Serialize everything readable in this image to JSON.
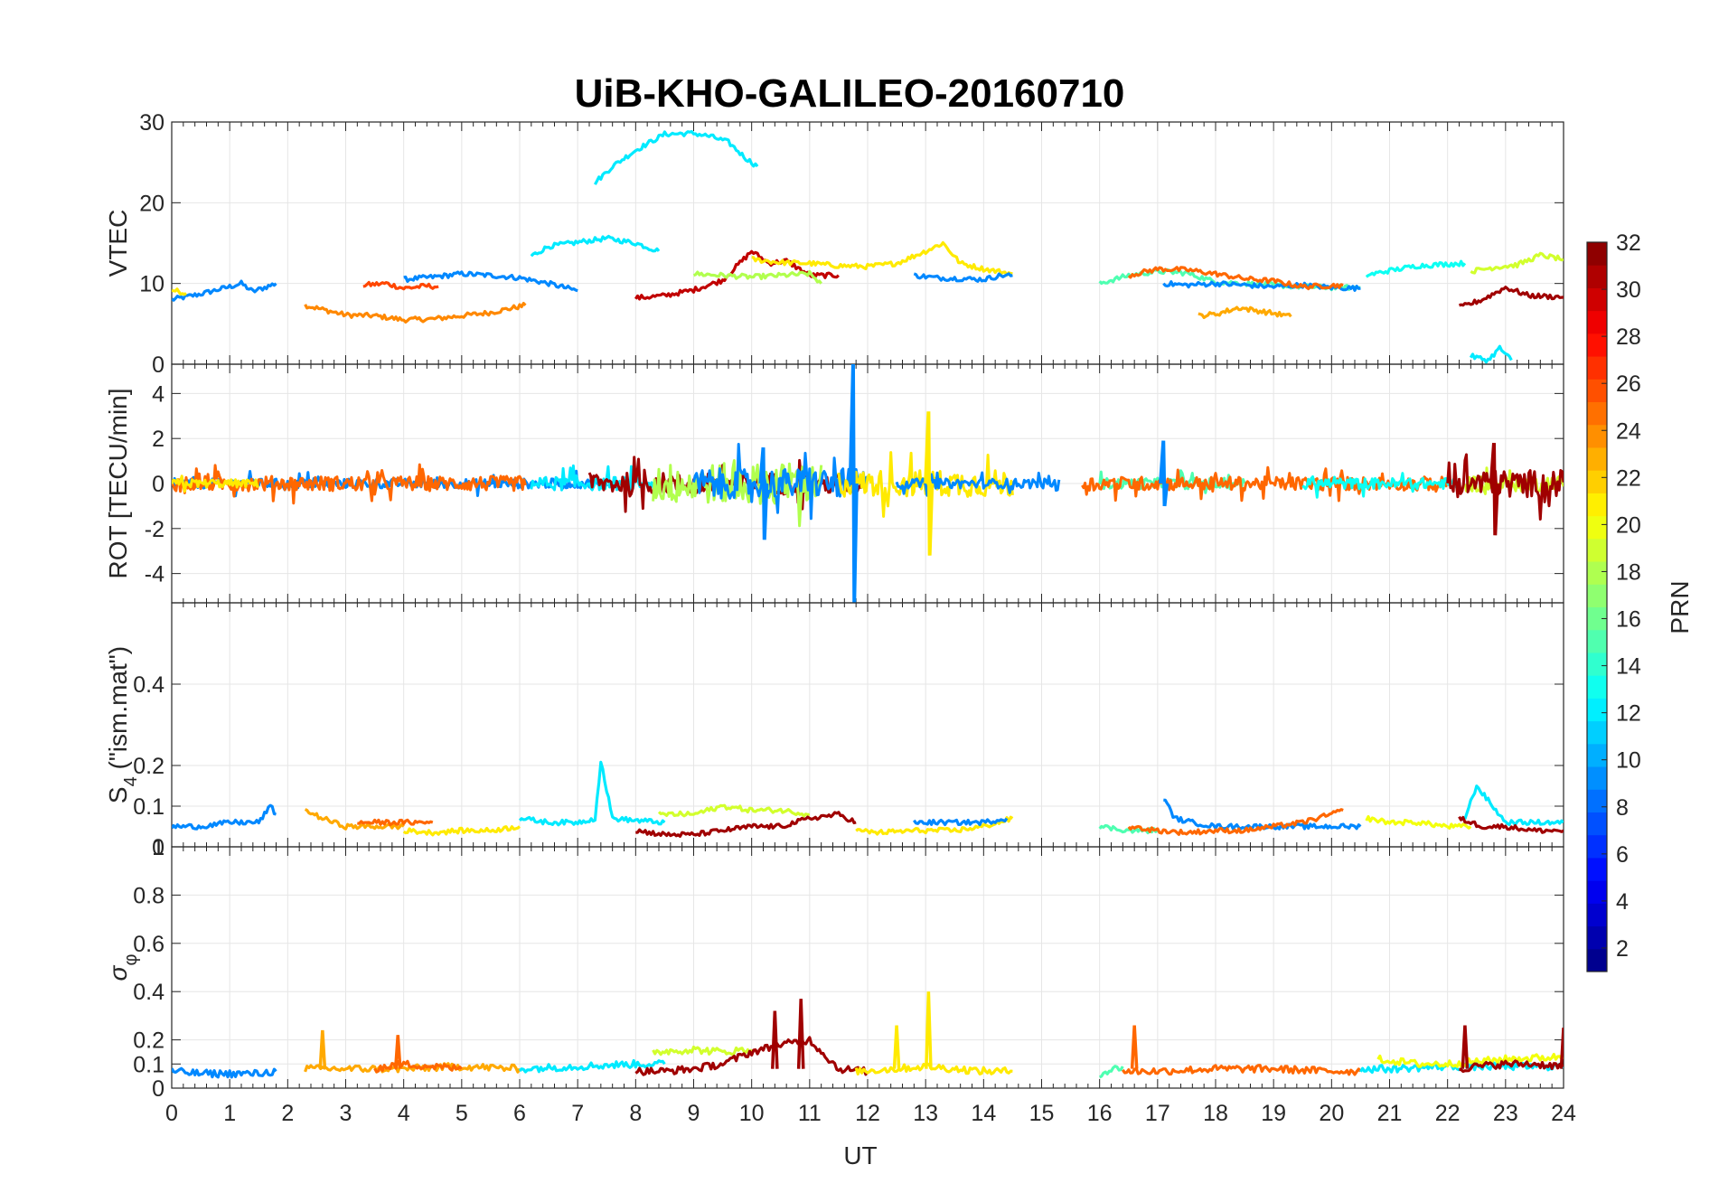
{
  "title": "UiB-KHO-GALILEO-20160710",
  "xlabel": "UT",
  "x_ticks": [
    "0",
    "1",
    "2",
    "3",
    "4",
    "5",
    "6",
    "7",
    "8",
    "9",
    "10",
    "11",
    "12",
    "13",
    "14",
    "15",
    "16",
    "17",
    "18",
    "19",
    "20",
    "21",
    "22",
    "23",
    "24"
  ],
  "colorbar": {
    "label": "PRN",
    "ticks": [
      "2",
      "4",
      "6",
      "8",
      "10",
      "12",
      "14",
      "16",
      "18",
      "20",
      "22",
      "24",
      "26",
      "28",
      "30",
      "32"
    ],
    "range": [
      1,
      32
    ],
    "colormap": "jet"
  },
  "panels": [
    {
      "ylabel": "VTEC",
      "ylim": [
        0,
        30
      ],
      "yticks": [
        "0",
        "10",
        "20",
        "30"
      ]
    },
    {
      "ylabel": "ROT [TECU/min]",
      "ylim": [
        -5.3,
        5.3
      ],
      "yticks": [
        "-4",
        "-2",
        "0",
        "2",
        "4"
      ]
    },
    {
      "ylabel": "S4 (\"ism.mat\")",
      "ylabel_main": "S",
      "ylabel_sub": "4",
      "ylabel_rest": " (\"ism.mat\")",
      "ylim": [
        0,
        0.6
      ],
      "yticks": [
        "0",
        "0.1",
        "0.2",
        "0.4"
      ]
    },
    {
      "ylabel": "σφ",
      "ylabel_main": "σ",
      "ylabel_sub": "φ",
      "ylim": [
        0,
        1
      ],
      "yticks": [
        "0",
        "0.1",
        "0.2",
        "0.4",
        "0.6",
        "0.8",
        "1"
      ]
    }
  ],
  "chart_data": {
    "type": "line",
    "title": "UiB-KHO-GALILEO-20160710",
    "xlabel": "UT",
    "xlim": [
      0,
      24
    ],
    "grid": true,
    "colorbar_label": "PRN",
    "vtec": [
      {
        "prn": 9,
        "x": [
          0,
          0.5,
          1,
          1.2,
          1.4,
          1.6,
          1.8
        ],
        "y": [
          8,
          8.7,
          9.6,
          10,
          9,
          9.5,
          10
        ]
      },
      {
        "prn": 21,
        "x": [
          0,
          0.25
        ],
        "y": [
          9.2,
          8.8
        ]
      },
      {
        "prn": 24,
        "x": [
          2.3,
          3,
          3.5,
          4,
          4.5,
          5,
          5.5,
          6.1
        ],
        "y": [
          7.3,
          6.1,
          6,
          5.5,
          5.6,
          6,
          6.4,
          7.3
        ]
      },
      {
        "prn": 26,
        "x": [
          3.3,
          3.7,
          4,
          4.4,
          4.6
        ],
        "y": [
          9.8,
          10,
          9.4,
          9.7,
          9.6
        ]
      },
      {
        "prn": 9,
        "x": [
          4,
          4.5,
          5,
          5.5,
          6,
          6.5,
          7
        ],
        "y": [
          10.5,
          10.8,
          11.2,
          11,
          10.7,
          10,
          9.1
        ]
      },
      {
        "prn": 12,
        "x": [
          6.2,
          6.5,
          7,
          7.5,
          8,
          8.4
        ],
        "y": [
          13.4,
          14.6,
          15.1,
          15.6,
          15,
          14
        ]
      },
      {
        "prn": 12,
        "x": [
          7.3,
          7.6,
          8,
          8.5,
          9,
          9.3,
          9.6,
          9.9,
          10.1
        ],
        "y": [
          22.5,
          24.5,
          26.5,
          28.5,
          28.6,
          28.2,
          27.5,
          25.5,
          24.5
        ]
      },
      {
        "prn": 30,
        "x": [
          8,
          8.5,
          9,
          9.5,
          10,
          10.3,
          10.6,
          11,
          11.5
        ],
        "y": [
          8.2,
          8.5,
          9.2,
          10.4,
          14,
          12.5,
          12.8,
          11,
          11
        ]
      },
      {
        "prn": 18,
        "x": [
          9,
          9.5,
          10,
          10.5,
          11,
          11.2
        ],
        "y": [
          11.2,
          11,
          10.8,
          11,
          11.2,
          10
        ]
      },
      {
        "prn": 21,
        "x": [
          10,
          10.5,
          11,
          11.5,
          12,
          12.5,
          13,
          13.3,
          13.6,
          14,
          14.5
        ],
        "y": [
          13,
          12.6,
          12.5,
          12.2,
          12.1,
          12.5,
          14,
          15,
          12.5,
          11.8,
          11.2
        ]
      },
      {
        "prn": 9,
        "x": [
          12.8,
          13.2,
          13.6,
          14,
          14.3,
          14.5
        ],
        "y": [
          11,
          10.7,
          10.6,
          10.5,
          11,
          11
        ]
      },
      {
        "prn": 15,
        "x": [
          16,
          16.5,
          17,
          17.5,
          18,
          18.5,
          19,
          19.5,
          20,
          20.5
        ],
        "y": [
          10,
          11,
          11.5,
          11.3,
          10.2,
          10,
          9.8,
          9.6,
          9.5,
          9.5
        ]
      },
      {
        "prn": 9,
        "x": [
          17.1,
          17.5,
          18,
          18.5,
          19,
          19.5,
          20,
          20.5
        ],
        "y": [
          10,
          9.8,
          10,
          9.8,
          9.6,
          9.8,
          9.5,
          9.4
        ]
      },
      {
        "prn": 25,
        "x": [
          16.5,
          17,
          17.5,
          18,
          18.5,
          19,
          19.5,
          20.2
        ],
        "y": [
          11,
          11.8,
          11.7,
          11.2,
          10.6,
          10.3,
          9.6,
          9.8
        ]
      },
      {
        "prn": 23,
        "x": [
          17.7,
          18,
          18.4,
          19,
          19.3
        ],
        "y": [
          6,
          6.2,
          7,
          6.3,
          5.9
        ]
      },
      {
        "prn": 13,
        "x": [
          20.6,
          21,
          21.5,
          22,
          22.3
        ],
        "y": [
          11,
          11.6,
          12.2,
          12.4,
          12.5
        ]
      },
      {
        "prn": 19,
        "x": [
          22.4,
          22.8,
          23.2,
          23.6,
          24
        ],
        "y": [
          11.5,
          12,
          12.3,
          13.5,
          13
        ]
      },
      {
        "prn": 31,
        "x": [
          22.2,
          22.6,
          23,
          23.4,
          24
        ],
        "y": [
          7,
          8,
          9.5,
          8.5,
          8.3
        ]
      },
      {
        "prn": 12,
        "x": [
          22.4,
          22.7,
          22.9,
          23.1
        ],
        "y": [
          1,
          0.5,
          2,
          0.5
        ]
      }
    ],
    "rot_segments": [
      {
        "prn": 9,
        "x_range": [
          0,
          7.5
        ],
        "amplitude": 0.35
      },
      {
        "prn": 25,
        "x_range": [
          0,
          6.1
        ],
        "amplitude": 0.55
      },
      {
        "prn": 21,
        "x_range": [
          0,
          1.5
        ],
        "amplitude": 0.3
      },
      {
        "prn": 12,
        "x_range": [
          6.2,
          8.4
        ],
        "amplitude": 0.5
      },
      {
        "prn": 31,
        "x_range": [
          7.2,
          11.9
        ],
        "amplitude": 0.8
      },
      {
        "prn": 18,
        "x_range": [
          8.3,
          11.2
        ],
        "amplitude": 1.5
      },
      {
        "prn": 9,
        "x_range": [
          9,
          12
        ],
        "amplitude": 1.1
      },
      {
        "prn": 21,
        "x_range": [
          11.5,
          14.5
        ],
        "amplitude": 1.0
      },
      {
        "prn": 9,
        "x_range": [
          12.5,
          15.3
        ],
        "amplitude": 0.35
      },
      {
        "prn": 15,
        "x_range": [
          16,
          18.5
        ],
        "amplitude": 0.4
      },
      {
        "prn": 25,
        "x_range": [
          15.7,
          22
        ],
        "amplitude": 0.5
      },
      {
        "prn": 13,
        "x_range": [
          19.5,
          22.2
        ],
        "amplitude": 0.4
      },
      {
        "prn": 19,
        "x_range": [
          22.3,
          24
        ],
        "amplitude": 0.6
      },
      {
        "prn": 31,
        "x_range": [
          22,
          24
        ],
        "amplitude": 1.0
      }
    ],
    "rot_spikes": [
      {
        "prn": 9,
        "x": 11.75,
        "ymin": -5.3,
        "ymax": 5.3
      },
      {
        "prn": 21,
        "x": 13.05,
        "ymin": -3.2,
        "ymax": 3.2
      },
      {
        "prn": 9,
        "x": 10.2,
        "ymin": -2.5,
        "ymax": 1.6
      },
      {
        "prn": 31,
        "x": 22.8,
        "ymin": -2.3,
        "ymax": 1.8
      },
      {
        "prn": 9,
        "x": 17.1,
        "ymin": -1.0,
        "ymax": 1.9
      }
    ],
    "s4": [
      {
        "prn": 9,
        "x": [
          0,
          0.5,
          1,
          1.5,
          1.7,
          1.8
        ],
        "y": [
          0.05,
          0.05,
          0.06,
          0.06,
          0.1,
          0.08
        ]
      },
      {
        "prn": 23,
        "x": [
          2.3,
          2.6,
          3,
          3.5,
          4
        ],
        "y": [
          0.09,
          0.07,
          0.05,
          0.05,
          0.05
        ]
      },
      {
        "prn": 25,
        "x": [
          3.2,
          3.6,
          4,
          4.5
        ],
        "y": [
          0.06,
          0.06,
          0.06,
          0.06
        ]
      },
      {
        "prn": 21,
        "x": [
          4,
          4.5,
          5,
          5.5,
          6
        ],
        "y": [
          0.04,
          0.035,
          0.04,
          0.04,
          0.05
        ]
      },
      {
        "prn": 12,
        "x": [
          6,
          6.5,
          7,
          7.3,
          7.4,
          7.6,
          8,
          8.5
        ],
        "y": [
          0.07,
          0.06,
          0.06,
          0.07,
          0.21,
          0.07,
          0.065,
          0.06
        ]
      },
      {
        "prn": 19,
        "x": [
          8.4,
          9,
          9.5,
          10,
          10.5,
          11
        ],
        "y": [
          0.08,
          0.08,
          0.1,
          0.09,
          0.09,
          0.08
        ]
      },
      {
        "prn": 31,
        "x": [
          8,
          8.5,
          9,
          9.5,
          10,
          10.5,
          11,
          11.5,
          11.8
        ],
        "y": [
          0.04,
          0.03,
          0.03,
          0.04,
          0.05,
          0.05,
          0.07,
          0.08,
          0.06
        ]
      },
      {
        "prn": 21,
        "x": [
          11.8,
          12.2,
          12.8,
          13.5,
          14,
          14.5
        ],
        "y": [
          0.04,
          0.035,
          0.04,
          0.04,
          0.05,
          0.07
        ]
      },
      {
        "prn": 9,
        "x": [
          12.8,
          13.2,
          13.6,
          14,
          14.4
        ],
        "y": [
          0.06,
          0.06,
          0.06,
          0.06,
          0.07
        ]
      },
      {
        "prn": 15,
        "x": [
          16,
          16.5,
          17
        ],
        "y": [
          0.05,
          0.04,
          0.04
        ]
      },
      {
        "prn": 9,
        "x": [
          17.1,
          17.3,
          17.6,
          18,
          18.5,
          19,
          19.5,
          20.2,
          20.5
        ],
        "y": [
          0.12,
          0.07,
          0.06,
          0.05,
          0.05,
          0.05,
          0.05,
          0.05,
          0.05
        ]
      },
      {
        "prn": 25,
        "x": [
          16.5,
          17,
          17.5,
          18,
          18.5,
          19,
          19.5,
          20,
          20.2
        ],
        "y": [
          0.05,
          0.04,
          0.035,
          0.04,
          0.04,
          0.05,
          0.06,
          0.08,
          0.09
        ]
      },
      {
        "prn": 20,
        "x": [
          20.6,
          21,
          21.5,
          22,
          22.4
        ],
        "y": [
          0.07,
          0.06,
          0.06,
          0.05,
          0.05
        ]
      },
      {
        "prn": 12,
        "x": [
          22.3,
          22.5,
          23,
          23.5,
          24
        ],
        "y": [
          0.07,
          0.15,
          0.06,
          0.06,
          0.06
        ]
      },
      {
        "prn": 31,
        "x": [
          22.2,
          22.6,
          23,
          23.5,
          24
        ],
        "y": [
          0.07,
          0.05,
          0.05,
          0.04,
          0.04
        ]
      }
    ],
    "sigma_phi": [
      {
        "prn": 9,
        "x": [
          0,
          0.5,
          1,
          1.5,
          1.8
        ],
        "y": [
          0.07,
          0.06,
          0.06,
          0.06,
          0.07
        ]
      },
      {
        "prn": 23,
        "x": [
          2.3,
          3,
          4,
          5,
          6
        ],
        "y": [
          0.08,
          0.08,
          0.08,
          0.09,
          0.08
        ]
      },
      {
        "prn": 25,
        "x": [
          3.5,
          4,
          4.5,
          5
        ],
        "y": [
          0.08,
          0.1,
          0.09,
          0.08
        ]
      },
      {
        "prn": 12,
        "x": [
          6,
          7,
          8,
          8.5
        ],
        "y": [
          0.08,
          0.09,
          0.1,
          0.1
        ]
      },
      {
        "prn": 19,
        "x": [
          8.3,
          9,
          9.5,
          10
        ],
        "y": [
          0.15,
          0.16,
          0.15,
          0.16
        ]
      },
      {
        "prn": 31,
        "x": [
          8,
          8.5,
          9,
          9.5,
          10,
          10.5,
          11,
          11.5,
          12
        ],
        "y": [
          0.07,
          0.07,
          0.08,
          0.1,
          0.15,
          0.18,
          0.2,
          0.08,
          0.07
        ]
      },
      {
        "prn": 21,
        "x": [
          11.8,
          12.5,
          13,
          13.5,
          14,
          14.5
        ],
        "y": [
          0.07,
          0.08,
          0.09,
          0.08,
          0.07,
          0.07
        ]
      },
      {
        "prn": 15,
        "x": [
          16,
          16.4
        ],
        "y": [
          0.06,
          0.09
        ]
      },
      {
        "prn": 25,
        "x": [
          16.4,
          17,
          18,
          19,
          20,
          20.5
        ],
        "y": [
          0.07,
          0.07,
          0.08,
          0.08,
          0.07,
          0.07
        ]
      },
      {
        "prn": 12,
        "x": [
          20.5,
          21,
          22,
          23,
          24
        ],
        "y": [
          0.08,
          0.08,
          0.09,
          0.09,
          0.09
        ]
      },
      {
        "prn": 20,
        "x": [
          20.8,
          21.5,
          22,
          23,
          24
        ],
        "y": [
          0.12,
          0.1,
          0.1,
          0.12,
          0.13
        ]
      },
      {
        "prn": 31,
        "x": [
          22.2,
          22.5,
          23,
          23.5,
          24
        ],
        "y": [
          0.08,
          0.09,
          0.1,
          0.1,
          0.09
        ]
      }
    ],
    "sigma_phi_spikes": [
      {
        "prn": 31,
        "x": 10.85,
        "y": 0.37
      },
      {
        "prn": 31,
        "x": 10.4,
        "y": 0.32
      },
      {
        "prn": 21,
        "x": 13.05,
        "y": 0.4
      },
      {
        "prn": 21,
        "x": 12.5,
        "y": 0.26
      },
      {
        "prn": 23,
        "x": 2.6,
        "y": 0.24
      },
      {
        "prn": 25,
        "x": 3.9,
        "y": 0.22
      },
      {
        "prn": 25,
        "x": 16.6,
        "y": 0.26
      },
      {
        "prn": 31,
        "x": 22.3,
        "y": 0.26
      },
      {
        "prn": 31,
        "x": 24,
        "y": 0.25
      }
    ]
  }
}
